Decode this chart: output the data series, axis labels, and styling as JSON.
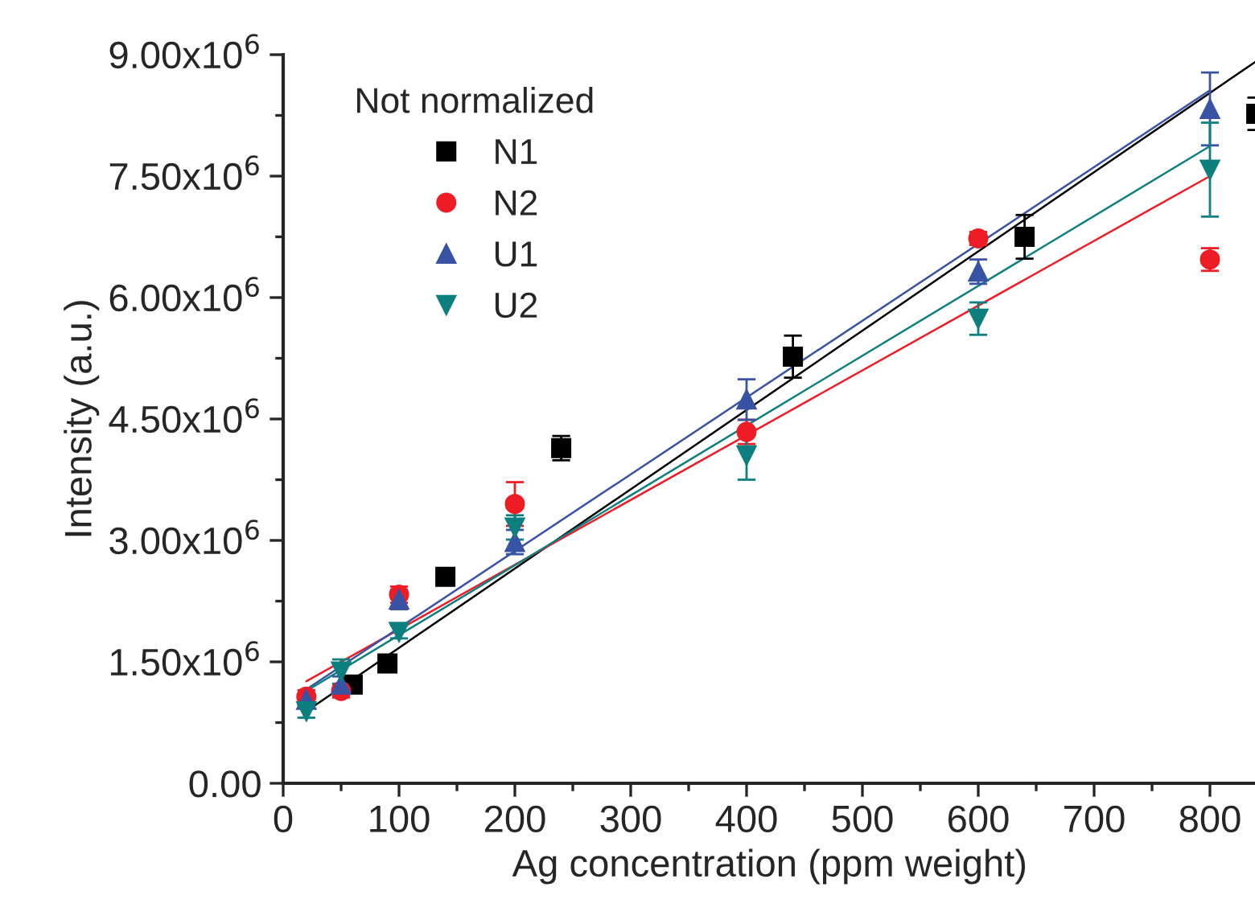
{
  "chart_data": {
    "type": "scatter",
    "xlabel": "Ag concentration (ppm weight)",
    "ylabel": "Intensity (a.u.)",
    "legend_title": "Not normalized",
    "legend": "top left",
    "grid": false,
    "xlim": [
      0,
      840
    ],
    "ylim": [
      0,
      9000000
    ],
    "xticks": [
      0,
      {
        "value": 50,
        "label": null
      },
      100,
      {
        "value": 150,
        "label": null
      },
      200,
      {
        "value": 250,
        "label": null
      },
      300,
      {
        "value": 350,
        "label": null
      },
      400,
      {
        "value": 450,
        "label": null
      },
      500,
      {
        "value": 550,
        "label": null
      },
      600,
      {
        "value": 650,
        "label": null
      },
      700,
      {
        "value": 750,
        "label": null
      },
      800
    ],
    "yticks": [
      {
        "value": 0,
        "label": "0.00"
      },
      {
        "value": 750000,
        "label": null
      },
      {
        "value": 1500000,
        "label": "1.50x10$^{6}$"
      },
      {
        "value": 2250000,
        "label": null
      },
      {
        "value": 3000000,
        "label": "3.00x10$^{6}$"
      },
      {
        "value": 3750000,
        "label": null
      },
      {
        "value": 4500000,
        "label": "4.50x10$^{6}$"
      },
      {
        "value": 5250000,
        "label": null
      },
      {
        "value": 6000000,
        "label": "6.00x10$^{6}$"
      },
      {
        "value": 6750000,
        "label": null
      },
      {
        "value": 7500000,
        "label": "7.50x10$^{6}$"
      },
      {
        "value": 8250000,
        "label": null
      },
      {
        "value": 9000000,
        "label": "9.00x10$^{6}$"
      }
    ],
    "series": [
      {
        "name": "N1",
        "marker": "square",
        "color": "#000000",
        "x": [
          60,
          90,
          140,
          240,
          440,
          640,
          840
        ],
        "values": [
          1220000,
          1480000,
          2550000,
          4140000,
          5270000,
          6750000,
          8270000
        ],
        "errors": [
          60000,
          60000,
          100000,
          150000,
          260000,
          270000,
          200000
        ]
      },
      {
        "name": "N2",
        "marker": "circle",
        "color": "#ee1c25",
        "x": [
          20,
          50,
          100,
          200,
          400,
          600,
          800
        ],
        "values": [
          1070000,
          1140000,
          2330000,
          3450000,
          4340000,
          6730000,
          6470000
        ],
        "errors": [
          80000,
          80000,
          100000,
          270000,
          150000,
          80000,
          140000
        ]
      },
      {
        "name": "U1",
        "marker": "triangle",
        "color": "#3953a4",
        "x": [
          20,
          50,
          100,
          200,
          400,
          600,
          800
        ],
        "values": [
          1030000,
          1220000,
          2270000,
          2980000,
          4740000,
          6320000,
          8330000
        ],
        "errors": [
          60000,
          100000,
          120000,
          150000,
          250000,
          150000,
          450000
        ]
      },
      {
        "name": "U2",
        "marker": "triangle-down",
        "color": "#0e7f7f",
        "x": [
          20,
          50,
          100,
          200,
          400,
          600,
          800
        ],
        "values": [
          890000,
          1380000,
          1870000,
          3160000,
          4050000,
          5740000,
          7580000
        ],
        "errors": [
          80000,
          150000,
          80000,
          150000,
          300000,
          200000,
          580000
        ]
      },
      {
        "type": "line",
        "color": "#000000",
        "x": [
          20,
          840
        ],
        "values": [
          890000,
          8920000
        ]
      },
      {
        "type": "line",
        "color": "#ee1c25",
        "x": [
          20,
          800
        ],
        "values": [
          1260000,
          7500000
        ]
      },
      {
        "type": "line",
        "color": "#3953a4",
        "x": [
          20,
          800
        ],
        "values": [
          1160000,
          8560000
        ]
      },
      {
        "type": "line",
        "color": "#0e7f7f",
        "x": [
          20,
          800
        ],
        "values": [
          1140000,
          7870000
        ]
      }
    ]
  }
}
